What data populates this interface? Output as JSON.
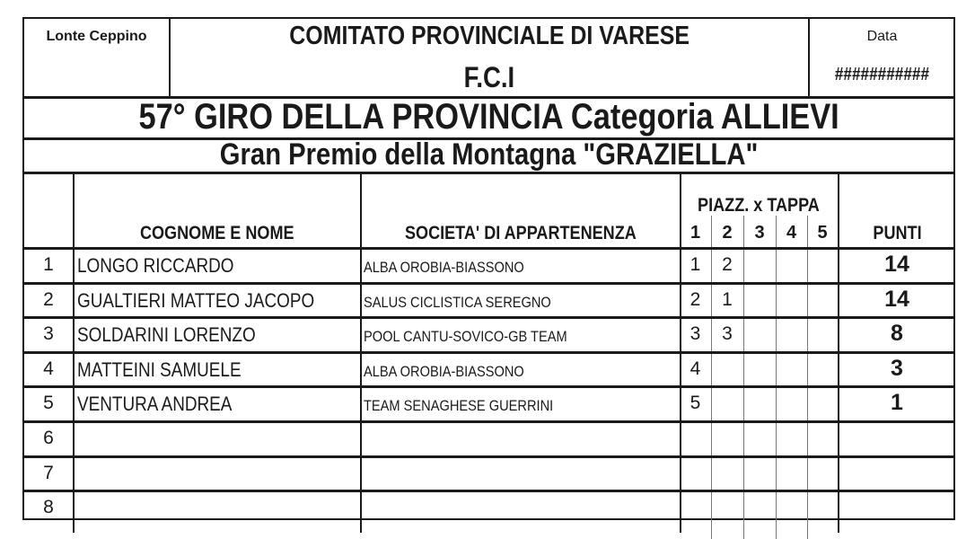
{
  "header": {
    "left_label": "Lonte Ceppino",
    "title": "COMITATO PROVINCIALE DI VARESE",
    "subtitle": "F.C.I",
    "date_label": "Data",
    "date_value": "###########"
  },
  "race_title": "57° GIRO DELLA PROVINCIA Categoria ALLIEVI",
  "race_subtitle": "Gran Premio della Montagna \"GRAZIELLA\"",
  "columns": {
    "name": "COGNOME E NOME",
    "society": "SOCIETA' DI APPARTENENZA",
    "stage_group": "PIAZZ. x TAPPA",
    "stages": [
      "1",
      "2",
      "3",
      "4",
      "5"
    ],
    "points": "PUNTI"
  },
  "rows": [
    {
      "pos": "1",
      "name": "LONGO RICCARDO",
      "society": "ALBA OROBIA-BIASSONO",
      "stages": [
        "1",
        "2",
        "",
        "",
        ""
      ],
      "points": "14"
    },
    {
      "pos": "2",
      "name": "GUALTIERI MATTEO JACOPO",
      "society": "SALUS CICLISTICA SEREGNO",
      "stages": [
        "2",
        "1",
        "",
        "",
        ""
      ],
      "points": "14"
    },
    {
      "pos": "3",
      "name": "SOLDARINI LORENZO",
      "society": "POOL CANTU-SOVICO-GB TEAM",
      "stages": [
        "3",
        "3",
        "",
        "",
        ""
      ],
      "points": "8"
    },
    {
      "pos": "4",
      "name": "MATTEINI SAMUELE",
      "society": "ALBA OROBIA-BIASSONO",
      "stages": [
        "4",
        "",
        "",
        "",
        ""
      ],
      "points": "3"
    },
    {
      "pos": "5",
      "name": "VENTURA ANDREA",
      "society": "TEAM SENAGHESE GUERRINI",
      "stages": [
        "5",
        "",
        "",
        "",
        ""
      ],
      "points": "1"
    },
    {
      "pos": "6",
      "name": "",
      "society": "",
      "stages": [
        "",
        "",
        "",
        "",
        ""
      ],
      "points": ""
    },
    {
      "pos": "7",
      "name": "",
      "society": "",
      "stages": [
        "",
        "",
        "",
        "",
        ""
      ],
      "points": ""
    },
    {
      "pos": "8",
      "name": "",
      "society": "",
      "stages": [
        "",
        "",
        "",
        "",
        ""
      ],
      "points": ""
    }
  ]
}
